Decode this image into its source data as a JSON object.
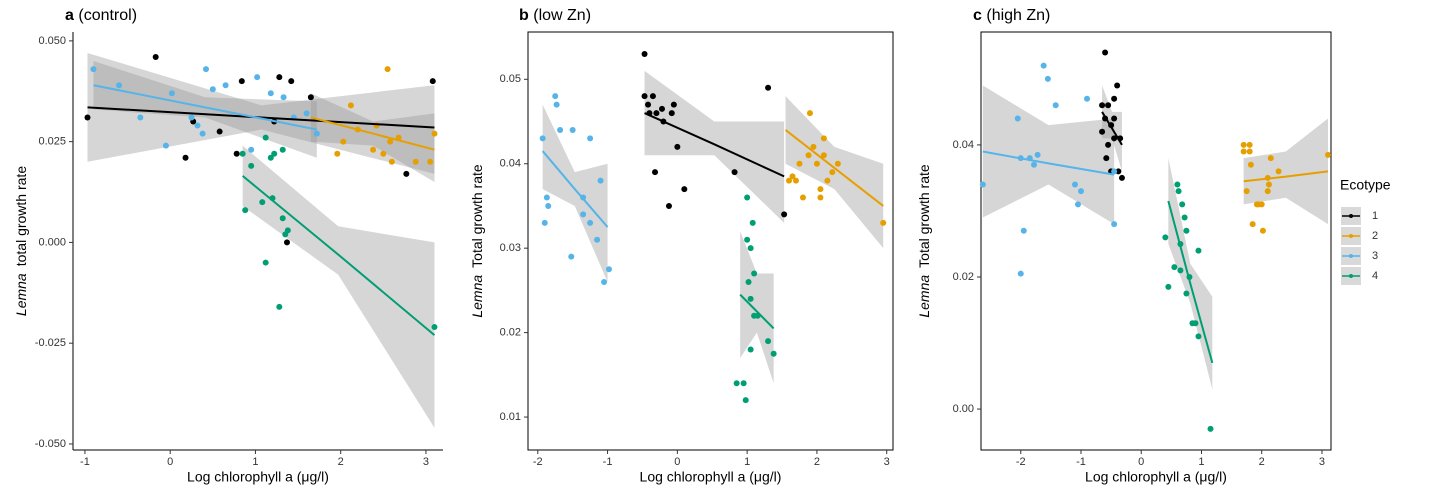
{
  "legend_title": "Ecotype",
  "ecotypes": [
    {
      "name": "1",
      "color": "#000000"
    },
    {
      "name": "2",
      "color": "#E69F00"
    },
    {
      "name": "3",
      "color": "#56B4E9"
    },
    {
      "name": "4",
      "color": "#009E73"
    }
  ],
  "chart_data": [
    {
      "type": "scatter",
      "panel_label": "a",
      "title": "(control)",
      "xlabel": "Log chlorophyll a (μg/l)",
      "ylabel_italic": "Lemna",
      "ylabel": "total growth rate",
      "frame": false,
      "xlim": [
        -1.14,
        3.2
      ],
      "ylim": [
        -0.0515,
        0.0522
      ],
      "xticks": [
        -1,
        0,
        1,
        2,
        3
      ],
      "yticks": [
        {
          "value": -0.05,
          "label": "-0.050"
        },
        {
          "value": -0.025,
          "label": "-0.025"
        },
        {
          "value": 0,
          "label": "0.000"
        },
        {
          "value": 0.025,
          "label": "0.025"
        },
        {
          "value": 0.05,
          "label": "0.050"
        }
      ],
      "series": [
        {
          "x": [
            -0.97,
            -0.17,
            0.18,
            0.27,
            0.58,
            0.78,
            0.84,
            1.28,
            1.42,
            1.37,
            1.65,
            2.77,
            3.08,
            1.22
          ],
          "values": [
            0.031,
            0.046,
            0.021,
            0.03,
            0.0275,
            0.022,
            0.04,
            0.041,
            0.04,
            0,
            0.036,
            0.017,
            0.04,
            0.03
          ],
          "fit": {
            "x": [
              -0.97,
              1.07,
              3.1
            ],
            "y": [
              0.0335,
              0.031,
              0.0285
            ],
            "lower": [
              0.02,
              0.028,
              0.017
            ],
            "upper": [
              0.047,
              0.034,
              0.039
            ]
          }
        },
        {
          "x": [
            2.55,
            2.12,
            1.96,
            2.2,
            2.38,
            2.42,
            2.5,
            2.58,
            2.6,
            2.68,
            2.88,
            3.05,
            3.1,
            2.03
          ],
          "values": [
            0.043,
            0.034,
            0.022,
            0.028,
            0.023,
            0.029,
            0.022,
            0.025,
            0.02,
            0.026,
            0.02,
            0.02,
            0.027,
            0.025
          ],
          "fit": {
            "x": [
              1.65,
              2.38,
              3.1
            ],
            "y": [
              0.031,
              0.027,
              0.023
            ],
            "lower": [
              0.025,
              0.024,
              0.015
            ],
            "upper": [
              0.037,
              0.03,
              0.032
            ]
          }
        },
        {
          "x": [
            -0.9,
            -0.6,
            -0.35,
            -0.05,
            0.02,
            0.25,
            0.38,
            0.42,
            0.5,
            0.65,
            1.02,
            1.18,
            1.33,
            1.45,
            1.6,
            1.72,
            0.95,
            0.32
          ],
          "values": [
            0.043,
            0.039,
            0.031,
            0.024,
            0.037,
            0.031,
            0.027,
            0.043,
            0.038,
            0.039,
            0.041,
            0.037,
            0.036,
            0.031,
            0.032,
            0.027,
            0.023,
            0.029
          ],
          "fit": {
            "x": [
              -0.9,
              0.41,
              1.72
            ],
            "y": [
              0.039,
              0.0335,
              0.028
            ],
            "lower": [
              0.033,
              0.031,
              0.021
            ],
            "upper": [
              0.045,
              0.036,
              0.035
            ]
          }
        },
        {
          "x": [
            0.85,
            0.88,
            0.95,
            1.08,
            1.12,
            1.18,
            1.22,
            1.32,
            1.32,
            1.38,
            1.12,
            1.2,
            1.28,
            3.1,
            1.35
          ],
          "values": [
            0.022,
            0.008,
            0.019,
            0.01,
            0.026,
            0.021,
            0.022,
            0.023,
            0.006,
            0.003,
            -0.005,
            0.011,
            -0.016,
            -0.021,
            0.002
          ],
          "fit": {
            "x": [
              0.85,
              1.97,
              3.1
            ],
            "y": [
              0.0165,
              -0.003,
              -0.023
            ],
            "lower": [
              0.009,
              -0.008,
              -0.046
            ],
            "upper": [
              0.024,
              0.004,
              0
            ]
          }
        }
      ]
    },
    {
      "type": "scatter",
      "panel_label": "b",
      "title": "(low Zn)",
      "xlabel": "Log chlorophyll a (μg/l)",
      "ylabel_italic": "Lemna",
      "ylabel": "Total growth rate",
      "frame": true,
      "xlim": [
        -2.14,
        3.09
      ],
      "ylim": [
        0.0061,
        0.0556
      ],
      "xticks": [
        -2,
        -1,
        0,
        1,
        2,
        3
      ],
      "yticks": [
        0.01,
        0.02,
        0.03,
        0.04,
        0.05
      ],
      "series": [
        {
          "x": [
            -0.47,
            -0.47,
            -0.42,
            -0.35,
            -0.4,
            -0.3,
            -0.2,
            -0.05,
            -0.08,
            0,
            -0.32,
            -0.12,
            0.1,
            1.3,
            1.53,
            0.82,
            -0.22
          ],
          "values": [
            0.053,
            0.048,
            0.047,
            0.048,
            0.046,
            0.046,
            0.045,
            0.047,
            0.046,
            0.042,
            0.039,
            0.035,
            0.037,
            0.049,
            0.034,
            0.039,
            0.0465
          ],
          "fit": {
            "x": [
              -0.47,
              0.53,
              1.53
            ],
            "y": [
              0.046,
              0.0423,
              0.0385
            ],
            "lower": [
              0.041,
              0.041,
              0.033
            ],
            "upper": [
              0.051,
              0.045,
              0.045
            ]
          }
        },
        {
          "x": [
            1.6,
            1.7,
            1.75,
            1.8,
            1.88,
            1.9,
            1.95,
            2,
            2.05,
            2.05,
            2.1,
            2.15,
            2.22,
            2.3,
            2.1,
            2.95,
            1.65
          ],
          "values": [
            0.038,
            0.038,
            0.04,
            0.036,
            0.041,
            0.046,
            0.042,
            0.04,
            0.037,
            0.036,
            0.041,
            0.038,
            0.039,
            0.04,
            0.043,
            0.033,
            0.0385
          ],
          "fit": {
            "x": [
              1.55,
              2.25,
              2.95
            ],
            "y": [
              0.044,
              0.0395,
              0.035
            ],
            "lower": [
              0.04,
              0.037,
              0.03
            ],
            "upper": [
              0.048,
              0.042,
              0.04
            ]
          }
        },
        {
          "x": [
            -1.93,
            -1.9,
            -1.87,
            -1.85,
            -1.75,
            -1.73,
            -1.68,
            -1.52,
            -1.5,
            -1.35,
            -1.25,
            -1.25,
            -1.15,
            -1.1,
            -1.05,
            -0.98,
            -1.35
          ],
          "values": [
            0.043,
            0.033,
            0.036,
            0.035,
            0.048,
            0.047,
            0.044,
            0.029,
            0.044,
            0.036,
            0.043,
            0.033,
            0.031,
            0.038,
            0.026,
            0.0275,
            0.034
          ],
          "fit": {
            "x": [
              -1.93,
              -1.47,
              -1
            ],
            "y": [
              0.0415,
              0.037,
              0.0325
            ],
            "lower": [
              0.037,
              0.035,
              0.026
            ],
            "upper": [
              0.047,
              0.039,
              0.04
            ]
          }
        },
        {
          "x": [
            0.85,
            0.95,
            1,
            1,
            0.98,
            1.05,
            1.05,
            1.08,
            1.1,
            1.05,
            1.1,
            1.15,
            1.3,
            1.38,
            1.02
          ],
          "values": [
            0.014,
            0.014,
            0.036,
            0.031,
            0.012,
            0.024,
            0.03,
            0.033,
            0.027,
            0.018,
            0.022,
            0.022,
            0.019,
            0.0175,
            0.026
          ],
          "fit": {
            "x": [
              0.9,
              1.14,
              1.38
            ],
            "y": [
              0.0245,
              0.0225,
              0.0205
            ],
            "lower": [
              0.017,
              0.02,
              0.014
            ],
            "upper": [
              0.032,
              0.027,
              0.027
            ]
          }
        }
      ]
    },
    {
      "type": "scatter",
      "panel_label": "c",
      "title": "(high Zn)",
      "xlabel": "Log chlorophyll a (μg/l)",
      "ylabel_italic": "Lemna",
      "ylabel": "Total growth rate",
      "frame": true,
      "xlim": [
        -2.66,
        3.15
      ],
      "ylim": [
        -0.0062,
        0.0571
      ],
      "xticks": [
        -2,
        -1,
        0,
        1,
        2,
        3
      ],
      "yticks": [
        {
          "value": 0,
          "label": "0.00"
        },
        0.02,
        0.04
      ],
      "series": [
        {
          "x": [
            -0.6,
            -0.65,
            -0.55,
            -0.45,
            -0.45,
            -0.5,
            -0.4,
            -0.65,
            -0.55,
            -0.45,
            -0.58,
            -0.5,
            -0.35,
            -0.32,
            -0.38,
            -0.6
          ],
          "values": [
            0.054,
            0.046,
            0.046,
            0.047,
            0.044,
            0.043,
            0.049,
            0.042,
            0.04,
            0.041,
            0.038,
            0.036,
            0.041,
            0.035,
            0.036,
            0.044
          ],
          "fit": {
            "x": [
              -0.65,
              -0.485,
              -0.32
            ],
            "y": [
              0.045,
              0.0425,
              0.04
            ],
            "lower": [
              0.041,
              0.041,
              0.036
            ],
            "upper": [
              0.049,
              0.045,
              0.045
            ]
          }
        },
        {
          "x": [
            1.7,
            1.7,
            1.8,
            1.8,
            1.75,
            1.82,
            1.85,
            1.92,
            1.95,
            2,
            2.02,
            2.1,
            2.12,
            2.15,
            2.28,
            2.1,
            3.1
          ],
          "values": [
            0.04,
            0.039,
            0.039,
            0.04,
            0.033,
            0.037,
            0.028,
            0.031,
            0.031,
            0.031,
            0.027,
            0.035,
            0.034,
            0.038,
            0.036,
            0.033,
            0.0385
          ],
          "fit": {
            "x": [
              1.7,
              2.4,
              3.1
            ],
            "y": [
              0.0345,
              0.0352,
              0.036
            ],
            "lower": [
              0.031,
              0.032,
              0.028
            ],
            "upper": [
              0.038,
              0.039,
              0.044
            ]
          }
        },
        {
          "x": [
            -2.63,
            -2.05,
            -2,
            -1.95,
            -2,
            -1.85,
            -1.78,
            -1.72,
            -1.62,
            -1.55,
            -1.42,
            -1.1,
            -1.05,
            -1,
            -0.9,
            -0.45,
            -0.45
          ],
          "values": [
            0.034,
            0.044,
            0.038,
            0.027,
            0.0205,
            0.038,
            0.037,
            0.0385,
            0.052,
            0.05,
            0.046,
            0.034,
            0.031,
            0.033,
            0.047,
            0.036,
            0.028
          ],
          "fit": {
            "x": [
              -2.63,
              -1.54,
              -0.45
            ],
            "y": [
              0.039,
              0.0372,
              0.0355
            ],
            "lower": [
              0.029,
              0.034,
              0.028
            ],
            "upper": [
              0.049,
              0.043,
              0.044
            ]
          }
        },
        {
          "x": [
            0.4,
            0.45,
            0.6,
            0.62,
            0.55,
            0.65,
            0.68,
            0.72,
            0.75,
            0.75,
            0.8,
            0.85,
            0.9,
            0.95,
            0.95,
            1.15,
            0.65
          ],
          "values": [
            0.026,
            0.0185,
            0.034,
            0.033,
            0.0215,
            0.025,
            0.031,
            0.029,
            0.027,
            0.0175,
            0.02,
            0.013,
            0.013,
            0.011,
            0.024,
            -0.003,
            0.021
          ],
          "fit": {
            "x": [
              0.45,
              0.815,
              1.18
            ],
            "y": [
              0.0315,
              0.019,
              0.007
            ],
            "lower": [
              0.025,
              0.016,
              0.003
            ],
            "upper": [
              0.038,
              0.022,
              0.017
            ]
          }
        }
      ]
    }
  ]
}
